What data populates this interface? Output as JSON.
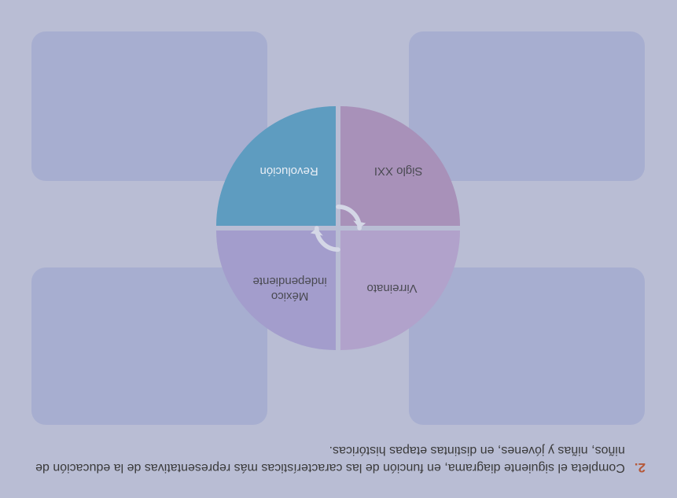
{
  "instruction": {
    "number": "2.",
    "number_color": "#b5593a",
    "text": "Completa el siguiente diagrama, en función de las características más representativas de la educación de niños, niñas y jóvenes, en distintas etapas históricas.",
    "text_color": "#3a3a3a"
  },
  "page_background": "#b9bdd4",
  "diagram": {
    "answer_box_color": "#a7aed0",
    "wheel_gap": 6,
    "quadrants": {
      "top_left": {
        "label": "Virreinato",
        "bg": "#b1a2cb",
        "text_color": "#4a4a52"
      },
      "top_right": {
        "label": "México\nindependiente",
        "bg": "#a39dcc",
        "text_color": "#4a4a52"
      },
      "bottom_left": {
        "label": "Siglo XXI",
        "bg": "#a891b9",
        "text_color": "#4a4a52"
      },
      "bottom_right": {
        "label": "Revolución",
        "bg": "#5e9cc0",
        "text_color": "#e8eef5"
      }
    },
    "cycle_arrow_color": "#d4d7e6"
  }
}
